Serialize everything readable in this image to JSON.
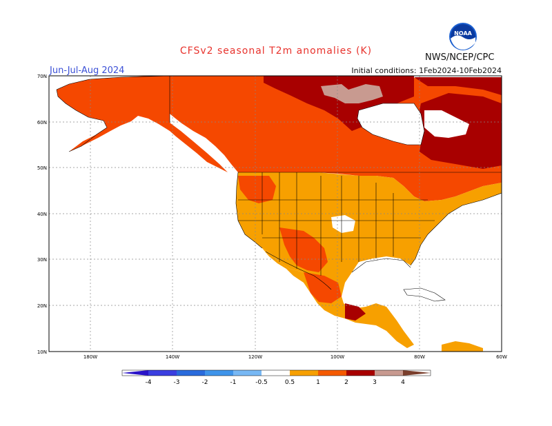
{
  "header": {
    "title": "CFSv2 seasonal T2m anomalies (K)",
    "season": "Jun-Jul-Aug 2024",
    "initial_conditions": "Initial conditions: 1Feb2024-10Feb2024",
    "agency": "NWS/NCEP/CPC",
    "logo_text": "NOAA"
  },
  "map": {
    "lat_labels": [
      "70N",
      "60N",
      "50N",
      "40N",
      "30N",
      "20N",
      "10N"
    ],
    "lon_labels": [
      "180W",
      "140W",
      "120W",
      "100W",
      "80W",
      "60W"
    ]
  },
  "legend": {
    "tick_labels": [
      "-4",
      "-3",
      "-2",
      "-1",
      "-0.5",
      "0.5",
      "1",
      "2",
      "3",
      "4"
    ],
    "colors": [
      "#2a14c8",
      "#3b3fe0",
      "#2a6bdc",
      "#3f94ea",
      "#78b8f4",
      "#ffffff",
      "#f7a000",
      "#f55a00",
      "#f03000",
      "#a80000",
      "#c89a90",
      "#7a3e2c"
    ]
  }
}
